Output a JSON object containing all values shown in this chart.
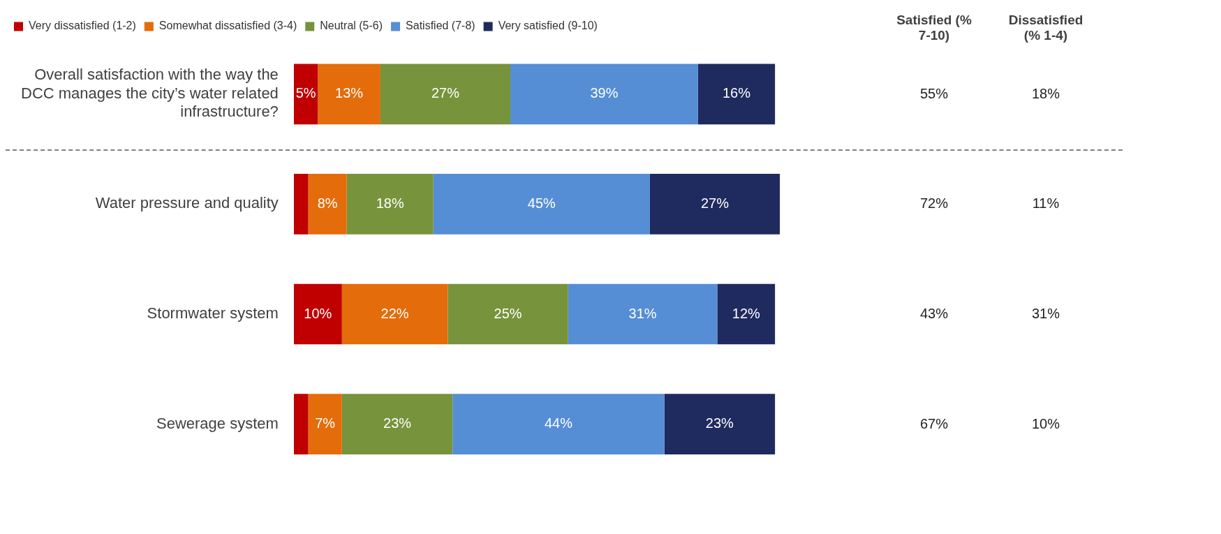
{
  "chart_data": {
    "type": "bar",
    "orientation": "horizontal",
    "stacked": true,
    "legend": "top left",
    "grid": false,
    "tick_labels": "y",
    "categories": [
      "Overall satisfaction with the way the DCC manages the city’s water related infrastructure?",
      "Water pressure and quality",
      "Stormwater system",
      "Sewerage system"
    ],
    "series": [
      {
        "name": "Very dissatisfied (1-2)",
        "color": "#c00000",
        "values": [
          5,
          3,
          10,
          3
        ],
        "value_labels": [
          "5%",
          null,
          "10%",
          null
        ]
      },
      {
        "name": "Somewhat dissatisfied (3-4)",
        "color": "#e46c0a",
        "values": [
          13,
          8,
          22,
          7
        ],
        "value_labels": [
          "13%",
          "8%",
          "22%",
          "7%"
        ]
      },
      {
        "name": "Neutral (5-6)",
        "color": "#77933c",
        "values": [
          27,
          18,
          25,
          23
        ],
        "value_labels": [
          "27%",
          "18%",
          "25%",
          "23%"
        ]
      },
      {
        "name": "Satisfied (7-8)",
        "color": "#558ed5",
        "values": [
          39,
          45,
          31,
          44
        ],
        "value_labels": [
          "39%",
          "45%",
          "31%",
          "44%"
        ]
      },
      {
        "name": "Very satisfied (9-10)",
        "color": "#1f2a5e",
        "values": [
          16,
          27,
          12,
          23
        ],
        "value_labels": [
          "16%",
          "27%",
          "12%",
          "23%"
        ]
      }
    ],
    "annotations": [
      "Satisfied (% 7-10)",
      "Dissatisfied (% 1-4)",
      "55%",
      "18%",
      "72%",
      "11%",
      "43%",
      "31%",
      "67%",
      "10%"
    ]
  }
}
